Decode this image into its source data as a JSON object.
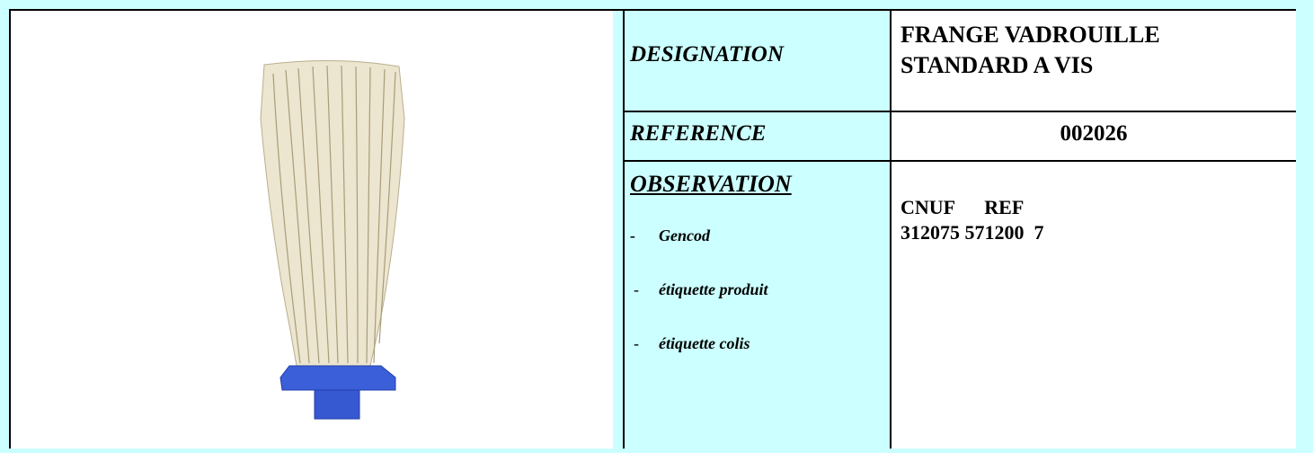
{
  "table": {
    "designation": {
      "label": "DESIGNATION",
      "value_lines": [
        "FRANGE VADROUILLE",
        "STANDARD A VIS"
      ]
    },
    "reference": {
      "label": "REFERENCE",
      "value": "002026"
    },
    "observation": {
      "label": "OBSERVATION",
      "items": [
        {
          "bullet": "-",
          "text": "Gencod"
        },
        {
          "bullet": "-",
          "text": "étiquette produit"
        },
        {
          "bullet": "-",
          "text": "étiquette colis"
        }
      ],
      "value_lines": [
        "CNUF      REF",
        "312075 571200  7"
      ]
    }
  }
}
